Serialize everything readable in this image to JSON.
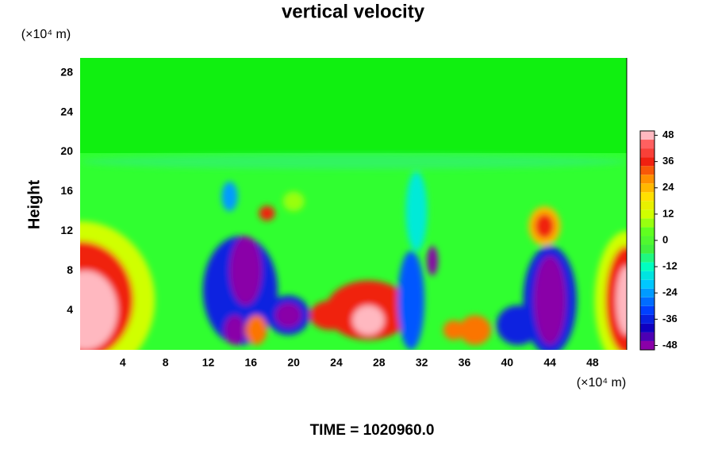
{
  "chart_data": {
    "type": "contour",
    "title": "vertical velocity",
    "y_unit": "(×10⁴ m)",
    "x_unit": "(×10⁴ m)",
    "ylabel": "Height",
    "footer": "TIME = 1020960.0",
    "xlim": [
      0,
      51.2
    ],
    "ylim": [
      0,
      29.5
    ],
    "xticks": [
      4,
      8,
      12,
      16,
      20,
      24,
      28,
      32,
      36,
      40,
      44,
      48
    ],
    "yticks": [
      4,
      8,
      12,
      16,
      20,
      24,
      28
    ],
    "colormap": [
      {
        "value": -48,
        "color": "#8a00a8"
      },
      {
        "value": -40,
        "color": "#1000c0"
      },
      {
        "value": -32,
        "color": "#0040ff"
      },
      {
        "value": -20,
        "color": "#00c8ff"
      },
      {
        "value": -12,
        "color": "#00ffc0"
      },
      {
        "value": -4,
        "color": "#40f040"
      },
      {
        "value": 4,
        "color": "#60ff20"
      },
      {
        "value": 12,
        "color": "#d0ff00"
      },
      {
        "value": 20,
        "color": "#ffe000"
      },
      {
        "value": 28,
        "color": "#ff9000"
      },
      {
        "value": 36,
        "color": "#f02010"
      },
      {
        "value": 44,
        "color": "#ff6060"
      },
      {
        "value": 48,
        "color": "#ffb8c0"
      }
    ],
    "colorbar": {
      "lim": [
        -50,
        50
      ],
      "ticks": [
        48,
        36,
        24,
        12,
        0,
        -12,
        -24,
        -36,
        -48
      ],
      "levels": [
        -50,
        -46,
        -42,
        -38,
        -34,
        -30,
        -26,
        -22,
        -18,
        -14,
        -10,
        -6,
        -2,
        2,
        6,
        10,
        14,
        18,
        22,
        26,
        30,
        34,
        38,
        42,
        46,
        50
      ]
    },
    "features": [
      {
        "x": 25.6,
        "y": 19,
        "w": 51.2,
        "h": 1.5,
        "value": -6
      },
      {
        "x": 0,
        "y": 5,
        "w": 14,
        "h": 16,
        "value": 12
      },
      {
        "x": 0,
        "y": 5,
        "w": 10,
        "h": 12,
        "value": 36
      },
      {
        "x": 0.5,
        "y": 4,
        "w": 6,
        "h": 8,
        "value": 48
      },
      {
        "x": 51.2,
        "y": 5,
        "w": 6,
        "h": 14,
        "value": 12
      },
      {
        "x": 51.2,
        "y": 5,
        "w": 4,
        "h": 11,
        "value": 36
      },
      {
        "x": 51.2,
        "y": 5,
        "w": 2,
        "h": 7,
        "value": 48
      },
      {
        "x": 15,
        "y": 6,
        "w": 7,
        "h": 11,
        "value": -36
      },
      {
        "x": 15.5,
        "y": 8,
        "w": 3,
        "h": 7,
        "value": -48
      },
      {
        "x": 14.5,
        "y": 2,
        "w": 2,
        "h": 3,
        "value": -48
      },
      {
        "x": 16.5,
        "y": 2,
        "w": 2,
        "h": 3,
        "value": 30
      },
      {
        "x": 19.5,
        "y": 3.5,
        "w": 4,
        "h": 4,
        "value": -36
      },
      {
        "x": 19.5,
        "y": 3.5,
        "w": 2.5,
        "h": 2.5,
        "value": -48
      },
      {
        "x": 17.5,
        "y": 13.8,
        "w": 1.5,
        "h": 1.5,
        "value": 36
      },
      {
        "x": 14,
        "y": 15.5,
        "w": 1.5,
        "h": 3,
        "value": -24
      },
      {
        "x": 20,
        "y": 15,
        "w": 2,
        "h": 2,
        "value": 8
      },
      {
        "x": 23.5,
        "y": 3.5,
        "w": 4,
        "h": 3,
        "value": 36
      },
      {
        "x": 27,
        "y": 4,
        "w": 8,
        "h": 6,
        "value": 36
      },
      {
        "x": 27,
        "y": 3,
        "w": 3,
        "h": 3,
        "value": 48
      },
      {
        "x": 31.5,
        "y": 14,
        "w": 2,
        "h": 8,
        "value": -15
      },
      {
        "x": 31,
        "y": 5,
        "w": 2.5,
        "h": 10,
        "value": -30
      },
      {
        "x": 33,
        "y": 9,
        "w": 1,
        "h": 3,
        "value": -48
      },
      {
        "x": 35,
        "y": 2,
        "w": 2,
        "h": 2,
        "value": 30
      },
      {
        "x": 37,
        "y": 2,
        "w": 3,
        "h": 3,
        "value": 30
      },
      {
        "x": 41,
        "y": 2.5,
        "w": 4,
        "h": 4,
        "value": -36
      },
      {
        "x": 44,
        "y": 5,
        "w": 5,
        "h": 11,
        "value": -36
      },
      {
        "x": 44,
        "y": 5,
        "w": 3,
        "h": 9,
        "value": -48
      },
      {
        "x": 43.5,
        "y": 12.5,
        "w": 3,
        "h": 4,
        "value": 24
      },
      {
        "x": 43.5,
        "y": 12.5,
        "w": 1.8,
        "h": 2.5,
        "value": 36
      }
    ]
  }
}
